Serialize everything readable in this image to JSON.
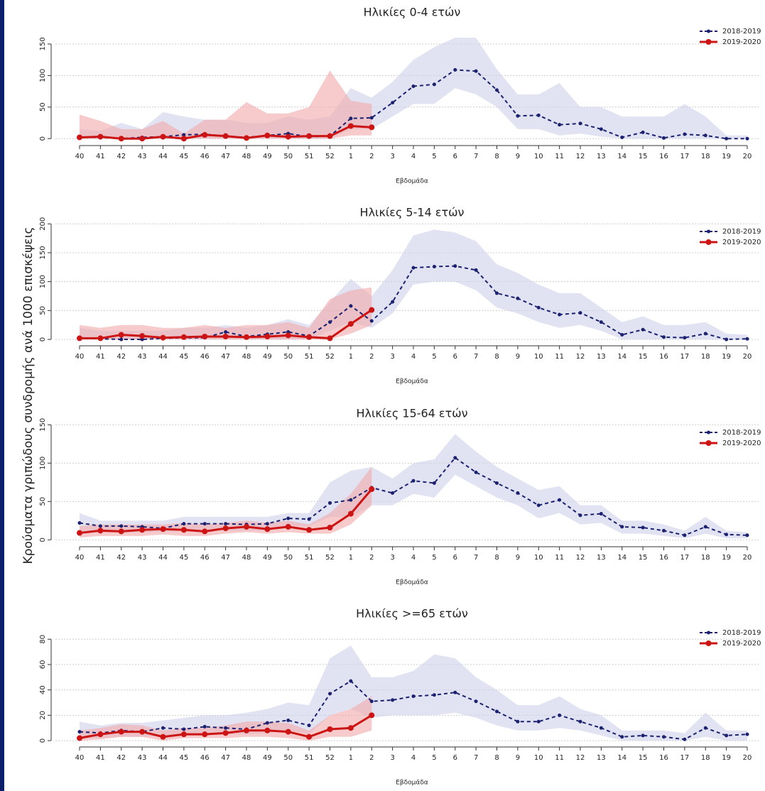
{
  "y_label": "Κρούσματα γριπώδους συνδρομής ανά 1000 επισκέψεις",
  "chart_data": [
    {
      "type": "line",
      "title": "Ηλικίες 0-4 ετών",
      "xlabel": "Εβδομάδα",
      "categories": [
        "40",
        "41",
        "42",
        "43",
        "44",
        "45",
        "46",
        "47",
        "48",
        "49",
        "50",
        "51",
        "52",
        "1",
        "2",
        "3",
        "4",
        "5",
        "6",
        "7",
        "8",
        "9",
        "10",
        "11",
        "12",
        "13",
        "14",
        "15",
        "16",
        "17",
        "18",
        "19",
        "20"
      ],
      "ylim": [
        -11,
        186
      ],
      "yticks": [
        0,
        50,
        100,
        150
      ],
      "grid": true,
      "legend": "upper right",
      "series": [
        {
          "name": "2018-2019",
          "color": "#1c2170",
          "band_color": "#cdd0ea",
          "line_style": "dashed",
          "values": [
            2,
            2,
            0,
            2,
            3,
            6,
            7,
            4,
            2,
            5,
            8,
            3,
            4,
            32,
            33,
            57,
            83,
            86,
            109,
            107,
            77,
            36,
            37,
            22,
            24,
            15,
            2,
            10,
            1,
            7,
            5,
            0,
            0
          ],
          "upper": [
            15,
            12,
            25,
            15,
            42,
            35,
            30,
            30,
            25,
            25,
            35,
            30,
            35,
            80,
            65,
            90,
            125,
            145,
            160,
            160,
            110,
            70,
            70,
            88,
            50,
            50,
            35,
            35,
            35,
            55,
            35,
            5,
            5
          ],
          "lower": [
            0,
            0,
            0,
            0,
            0,
            0,
            0,
            0,
            0,
            0,
            0,
            0,
            0,
            15,
            15,
            35,
            55,
            55,
            80,
            70,
            50,
            15,
            15,
            5,
            8,
            3,
            0,
            0,
            0,
            0,
            0,
            0,
            0
          ]
        },
        {
          "name": "2019-2020",
          "color": "#cc1414",
          "band_color": "#f2a8a8",
          "line_style": "solid",
          "values": [
            2,
            3,
            0,
            0,
            3,
            0,
            6,
            4,
            1,
            5,
            3,
            4,
            4,
            20,
            18,
            null,
            null,
            null,
            null,
            null,
            null,
            null,
            null,
            null,
            null,
            null,
            null,
            null,
            null,
            null,
            null,
            null,
            null
          ],
          "upper": [
            38,
            28,
            15,
            15,
            28,
            8,
            30,
            30,
            58,
            40,
            40,
            50,
            108,
            60,
            55,
            null,
            null,
            null,
            null,
            null,
            null,
            null,
            null,
            null,
            null,
            null,
            null,
            null,
            null,
            null,
            null,
            null,
            null
          ],
          "lower": [
            0,
            0,
            0,
            0,
            0,
            0,
            0,
            0,
            0,
            0,
            0,
            0,
            0,
            5,
            5,
            null,
            null,
            null,
            null,
            null,
            null,
            null,
            null,
            null,
            null,
            null,
            null,
            null,
            null,
            null,
            null,
            null,
            null
          ]
        }
      ]
    },
    {
      "type": "line",
      "title": "Ηλικίες 5-14 ετών",
      "xlabel": "Εβδομάδα",
      "categories": [
        "40",
        "41",
        "42",
        "43",
        "44",
        "45",
        "46",
        "47",
        "48",
        "49",
        "50",
        "51",
        "52",
        "1",
        "2",
        "3",
        "4",
        "5",
        "6",
        "7",
        "8",
        "9",
        "10",
        "11",
        "12",
        "13",
        "14",
        "15",
        "16",
        "17",
        "18",
        "19",
        "20"
      ],
      "ylim": [
        -11,
        204
      ],
      "yticks": [
        0,
        50,
        100,
        150,
        200
      ],
      "grid": true,
      "legend": "upper right",
      "series": [
        {
          "name": "2018-2019",
          "color": "#1c2170",
          "band_color": "#cdd0ea",
          "line_style": "dashed",
          "values": [
            2,
            1,
            0,
            0,
            2,
            3,
            3,
            13,
            5,
            9,
            13,
            6,
            30,
            58,
            32,
            65,
            124,
            126,
            127,
            120,
            80,
            71,
            55,
            43,
            46,
            30,
            8,
            17,
            4,
            3,
            10,
            0,
            1
          ],
          "upper": [
            20,
            15,
            15,
            15,
            15,
            20,
            20,
            25,
            20,
            25,
            35,
            25,
            65,
            105,
            75,
            120,
            180,
            190,
            185,
            170,
            130,
            115,
            95,
            80,
            80,
            55,
            30,
            40,
            25,
            25,
            30,
            10,
            8
          ],
          "lower": [
            0,
            0,
            0,
            0,
            0,
            0,
            0,
            0,
            0,
            0,
            0,
            0,
            15,
            30,
            20,
            45,
            95,
            100,
            100,
            85,
            55,
            45,
            30,
            20,
            25,
            15,
            0,
            0,
            0,
            0,
            0,
            0,
            0
          ]
        },
        {
          "name": "2019-2020",
          "color": "#cc1414",
          "band_color": "#f2a8a8",
          "line_style": "solid",
          "values": [
            2,
            2,
            8,
            6,
            3,
            4,
            5,
            5,
            4,
            5,
            7,
            4,
            2,
            27,
            51,
            null,
            null,
            null,
            null,
            null,
            null,
            null,
            null,
            null,
            null,
            null,
            null,
            null,
            null,
            null,
            null,
            null,
            null
          ],
          "upper": [
            25,
            20,
            25,
            25,
            20,
            20,
            25,
            20,
            25,
            25,
            30,
            20,
            70,
            85,
            90,
            null,
            null,
            null,
            null,
            null,
            null,
            null,
            null,
            null,
            null,
            null,
            null,
            null,
            null,
            null,
            null,
            null,
            null
          ],
          "lower": [
            0,
            0,
            0,
            0,
            0,
            0,
            0,
            0,
            0,
            0,
            0,
            0,
            0,
            10,
            25,
            null,
            null,
            null,
            null,
            null,
            null,
            null,
            null,
            null,
            null,
            null,
            null,
            null,
            null,
            null,
            null,
            null,
            null
          ]
        }
      ]
    },
    {
      "type": "line",
      "title": "Ηλικίες 15-64 ετών",
      "xlabel": "Εβδομάδα",
      "categories": [
        "40",
        "41",
        "42",
        "43",
        "44",
        "45",
        "46",
        "47",
        "48",
        "49",
        "50",
        "51",
        "52",
        "1",
        "2",
        "3",
        "4",
        "5",
        "6",
        "7",
        "8",
        "9",
        "10",
        "11",
        "12",
        "13",
        "14",
        "15",
        "16",
        "17",
        "18",
        "19",
        "20"
      ],
      "ylim": [
        -9,
        153
      ],
      "yticks": [
        0,
        50,
        100,
        150
      ],
      "grid": true,
      "legend": "upper right",
      "series": [
        {
          "name": "2018-2019",
          "color": "#1c2170",
          "band_color": "#cdd0ea",
          "line_style": "dashed",
          "values": [
            22,
            18,
            18,
            17,
            15,
            21,
            21,
            21,
            20,
            21,
            28,
            27,
            48,
            52,
            68,
            61,
            77,
            74,
            107,
            88,
            74,
            61,
            45,
            52,
            32,
            34,
            17,
            16,
            12,
            6,
            17,
            7,
            6
          ],
          "upper": [
            35,
            25,
            25,
            25,
            25,
            30,
            30,
            30,
            30,
            30,
            35,
            35,
            75,
            90,
            95,
            80,
            100,
            105,
            138,
            115,
            95,
            80,
            65,
            70,
            45,
            45,
            25,
            25,
            20,
            12,
            30,
            12,
            10
          ],
          "lower": [
            10,
            10,
            10,
            10,
            10,
            12,
            12,
            12,
            12,
            12,
            18,
            18,
            30,
            30,
            45,
            45,
            60,
            55,
            85,
            70,
            55,
            45,
            28,
            35,
            20,
            22,
            8,
            8,
            5,
            2,
            8,
            2,
            2
          ]
        },
        {
          "name": "2019-2020",
          "color": "#cc1414",
          "band_color": "#f2a8a8",
          "line_style": "solid",
          "values": [
            9,
            12,
            11,
            13,
            14,
            13,
            11,
            15,
            17,
            14,
            17,
            13,
            16,
            34,
            66,
            null,
            null,
            null,
            null,
            null,
            null,
            null,
            null,
            null,
            null,
            null,
            null,
            null,
            null,
            null,
            null,
            null,
            null
          ],
          "upper": [
            18,
            20,
            20,
            20,
            20,
            22,
            20,
            22,
            25,
            22,
            25,
            20,
            35,
            60,
            95,
            null,
            null,
            null,
            null,
            null,
            null,
            null,
            null,
            null,
            null,
            null,
            null,
            null,
            null,
            null,
            null,
            null,
            null
          ],
          "lower": [
            3,
            5,
            5,
            5,
            7,
            5,
            5,
            8,
            10,
            8,
            10,
            8,
            8,
            20,
            45,
            null,
            null,
            null,
            null,
            null,
            null,
            null,
            null,
            null,
            null,
            null,
            null,
            null,
            null,
            null,
            null,
            null,
            null
          ]
        }
      ]
    },
    {
      "type": "line",
      "title": "Ηλικίες >=65 ετών",
      "xlabel": "Εβδομάδα",
      "categories": [
        "40",
        "41",
        "42",
        "43",
        "44",
        "45",
        "46",
        "47",
        "48",
        "49",
        "50",
        "51",
        "52",
        "1",
        "2",
        "3",
        "4",
        "5",
        "6",
        "7",
        "8",
        "9",
        "10",
        "11",
        "12",
        "13",
        "14",
        "15",
        "16",
        "17",
        "18",
        "19",
        "20"
      ],
      "ylim": [
        -5,
        93
      ],
      "yticks": [
        0,
        20,
        40,
        60,
        80
      ],
      "grid": true,
      "legend": "upper right",
      "series": [
        {
          "name": "2018-2019",
          "color": "#1c2170",
          "band_color": "#cdd0ea",
          "line_style": "dashed",
          "values": [
            7,
            6,
            8,
            7,
            10,
            9,
            11,
            10,
            9,
            14,
            16,
            12,
            37,
            47,
            31,
            32,
            35,
            36,
            38,
            31,
            23,
            15,
            15,
            20,
            15,
            10,
            3,
            4,
            3,
            1,
            10,
            4,
            5
          ],
          "upper": [
            15,
            12,
            14,
            14,
            16,
            18,
            20,
            20,
            22,
            25,
            30,
            28,
            65,
            75,
            50,
            50,
            55,
            68,
            65,
            50,
            40,
            28,
            28,
            35,
            25,
            20,
            8,
            8,
            8,
            6,
            22,
            8,
            8
          ],
          "lower": [
            2,
            2,
            3,
            3,
            4,
            4,
            5,
            5,
            5,
            6,
            8,
            5,
            20,
            25,
            18,
            20,
            20,
            20,
            22,
            18,
            12,
            8,
            8,
            10,
            8,
            4,
            0,
            0,
            0,
            0,
            3,
            0,
            0
          ]
        },
        {
          "name": "2019-2020",
          "color": "#cc1414",
          "band_color": "#f2a8a8",
          "line_style": "solid",
          "values": [
            2,
            5,
            7,
            7,
            3,
            5,
            5,
            6,
            8,
            8,
            7,
            3,
            9,
            10,
            20,
            null,
            null,
            null,
            null,
            null,
            null,
            null,
            null,
            null,
            null,
            null,
            null,
            null,
            null,
            null,
            null,
            null,
            null
          ],
          "upper": [
            8,
            10,
            13,
            12,
            8,
            10,
            10,
            12,
            15,
            15,
            14,
            8,
            20,
            25,
            35,
            null,
            null,
            null,
            null,
            null,
            null,
            null,
            null,
            null,
            null,
            null,
            null,
            null,
            null,
            null,
            null,
            null,
            null
          ],
          "lower": [
            0,
            1,
            3,
            3,
            0,
            2,
            2,
            2,
            3,
            3,
            2,
            0,
            3,
            3,
            8,
            null,
            null,
            null,
            null,
            null,
            null,
            null,
            null,
            null,
            null,
            null,
            null,
            null,
            null,
            null,
            null,
            null,
            null
          ]
        }
      ]
    }
  ]
}
